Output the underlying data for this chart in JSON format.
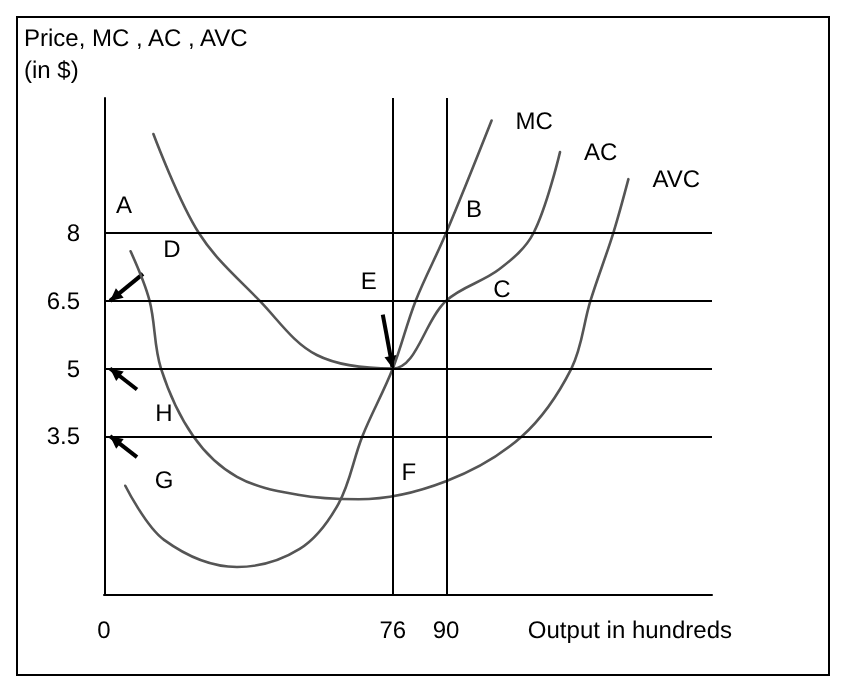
{
  "chart_data": {
    "type": "line",
    "xlabel": "Output in hundreds",
    "ylabel": "Price, MC , AC , AVC\n(in $)",
    "xlim": [
      0,
      160
    ],
    "ylim": [
      0,
      11
    ],
    "xticks": [
      0,
      76,
      90
    ],
    "yticks": [
      3.5,
      5,
      6.5,
      8
    ],
    "legend": false,
    "marker": "none",
    "line_style": "solid",
    "series": [
      {
        "name": "MC",
        "color": "#555555",
        "x": [
          5.6,
          15.8,
          35,
          51.5,
          61.7,
          68,
          76,
          82,
          90,
          102
        ],
        "values": [
          2.4,
          1.2,
          0.6,
          1.0,
          2.0,
          3.5,
          5,
          6.5,
          8,
          10.5
        ]
      },
      {
        "name": "AC",
        "color": "#555555",
        "x": [
          13,
          25,
          41,
          56,
          76,
          90,
          104,
          113,
          120
        ],
        "values": [
          10.2,
          8,
          6.5,
          5.3,
          5,
          6.5,
          7.2,
          8,
          9.8
        ]
      },
      {
        "name": "AVC",
        "color": "#555555",
        "x": [
          7,
          12,
          15,
          23.5,
          35,
          51,
          67,
          90,
          110,
          123,
          128,
          134,
          138
        ],
        "values": [
          7.6,
          6.5,
          5,
          3.5,
          2.6,
          2.2,
          2.1,
          2.5,
          3.5,
          5,
          6.5,
          8,
          9.2
        ]
      }
    ],
    "ref_lines": [
      {
        "axis": "y",
        "value": 8,
        "color": "#000000"
      },
      {
        "axis": "y",
        "value": 6.5,
        "color": "#000000"
      },
      {
        "axis": "y",
        "value": 5,
        "color": "#000000"
      },
      {
        "axis": "y",
        "value": 3.5,
        "color": "#000000"
      },
      {
        "axis": "x",
        "value": 76,
        "color": "#000000"
      },
      {
        "axis": "x",
        "value": 90,
        "color": "#000000"
      }
    ],
    "annotations": [
      {
        "text": "A",
        "x": 0,
        "y": 8
      },
      {
        "text": "B",
        "x": 90,
        "y": 8
      },
      {
        "text": "C",
        "x": 90,
        "y": 6.5
      },
      {
        "text": "D",
        "x": 0,
        "y": 6.5
      },
      {
        "text": "E",
        "x": 76,
        "y": 5
      },
      {
        "text": "F",
        "x": 76,
        "y": 3.5
      },
      {
        "text": "H",
        "x": 0,
        "y": 5
      },
      {
        "text": "G",
        "x": 0,
        "y": 3.5
      }
    ]
  }
}
